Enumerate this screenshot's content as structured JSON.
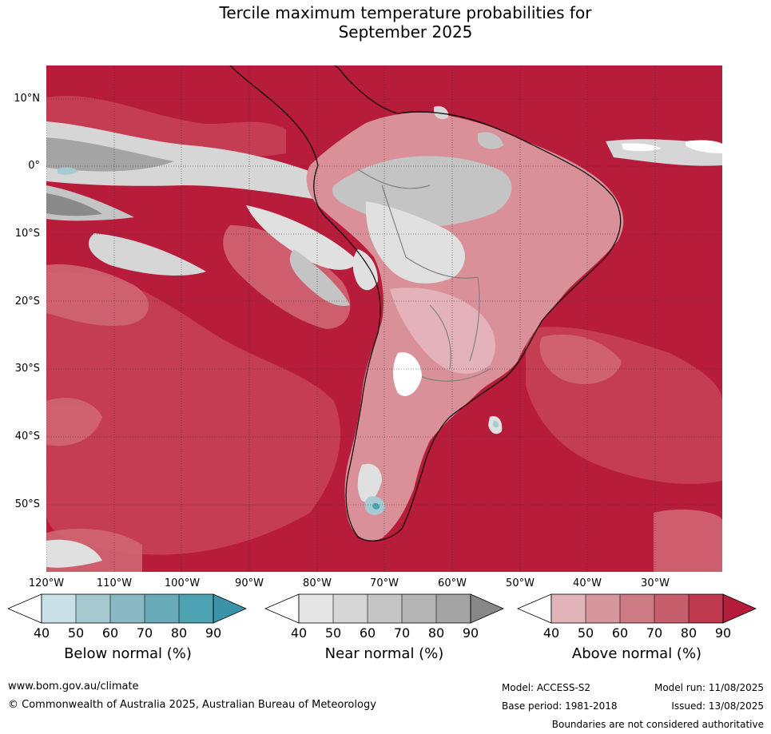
{
  "title_line1": "Tercile maximum temperature probabilities for",
  "title_line2": "September 2025",
  "map": {
    "lat_labels": [
      "10°N",
      "0°",
      "10°S",
      "20°S",
      "30°S",
      "40°S",
      "50°S"
    ],
    "lon_labels": [
      "120°W",
      "110°W",
      "100°W",
      "90°W",
      "80°W",
      "70°W",
      "60°W",
      "50°W",
      "40°W",
      "30°W"
    ],
    "colors": {
      "ocean_dark": "#b71c3a",
      "above_80": "#c84358",
      "above_70": "#d06673",
      "above_60": "#d99098",
      "above_50": "#e3b3b9",
      "near_50": "#e0e0e0",
      "near_70": "#c4c4c4",
      "near_90": "#8a8a8a",
      "below_50": "#a6cbd3"
    }
  },
  "colorbars": [
    {
      "label": "Below normal (%)",
      "ticks": [
        "40",
        "50",
        "60",
        "70",
        "80",
        "90"
      ],
      "colors": [
        "#c9e1e6",
        "#a6c9cf",
        "#8ab9c4",
        "#69aab9",
        "#4ea3b2",
        "#3a93a6"
      ]
    },
    {
      "label": "Near normal (%)",
      "ticks": [
        "40",
        "50",
        "60",
        "70",
        "80",
        "90"
      ],
      "colors": [
        "#e5e5e5",
        "#d6d6d6",
        "#c5c5c5",
        "#b4b4b4",
        "#a4a4a4",
        "#878787"
      ]
    },
    {
      "label": "Above normal (%)",
      "ticks": [
        "40",
        "50",
        "60",
        "70",
        "80",
        "90"
      ],
      "colors": [
        "#e1b4ba",
        "#d5969e",
        "#cc7a84",
        "#c75e6b",
        "#bf3a4f",
        "#b51b3a"
      ]
    }
  ],
  "footer": {
    "website": "www.bom.gov.au/climate",
    "copyright": "© Commonwealth of Australia 2025, Australian Bureau of Meteorology",
    "model": "Model: ACCESS-S2",
    "base_period": "Base period: 1981-2018",
    "model_run": "Model run: 11/08/2025",
    "issued": "Issued: 13/08/2025",
    "boundaries": "Boundaries are not considered authoritative"
  }
}
